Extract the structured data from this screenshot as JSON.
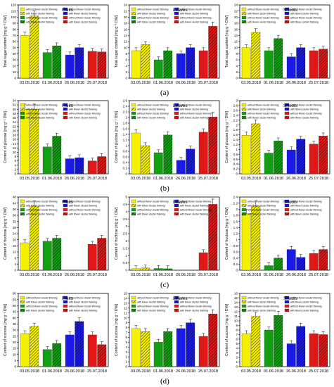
{
  "figure": {
    "panel_labels": [
      "(a)",
      "(b)",
      "(c)",
      "(d)"
    ]
  },
  "legend_labels": [
    "without flower cluster thinning",
    "with flower cluster thinning",
    "without flower cluster thinning",
    "with flower cluster thinning",
    "without flower cluster thinning",
    "with flower cluster thinning",
    "without flower cluster thinning",
    "with flower cluster thinning"
  ],
  "colors": {
    "2018-05-03": "#f5f000",
    "2018-06-01": "#12a012",
    "2018-06-26": "#1a1ae6",
    "2018-07-25": "#e01818"
  },
  "chart_data": [
    {
      "type": "bar",
      "row": 0,
      "col": 0,
      "title": "Fruits",
      "ylabel": "Total sugar content [mg g⁻¹ DW]",
      "ylim": [
        0,
        120
      ],
      "yticks": [
        0,
        10,
        20,
        30,
        40,
        50,
        60,
        70,
        80,
        90,
        100,
        110,
        120
      ],
      "categories": [
        "03.05.2018",
        "01.06.2018",
        "26.06.2018",
        "25.07.2018"
      ],
      "series": [
        {
          "name": "without flower cluster thinning",
          "values": [
            70,
            42,
            38,
            44
          ]
        },
        {
          "name": "with flower cluster thinning",
          "values": [
            102,
            53,
            50,
            43
          ]
        }
      ]
    },
    {
      "type": "bar",
      "row": 0,
      "col": 1,
      "title": "Leaves",
      "ylabel": "Total sugar content [mg g⁻¹ DW]",
      "ylim": [
        0,
        24
      ],
      "yticks": [
        0,
        2,
        4,
        6,
        8,
        10,
        12,
        14,
        16,
        18,
        20,
        22,
        24
      ],
      "categories": [
        "03.05.2018",
        "01.06.2018",
        "26.06.2018",
        "25.07.2018"
      ],
      "series": [
        {
          "name": "without flower cluster thinning",
          "values": [
            9,
            6,
            8,
            9
          ]
        },
        {
          "name": "with flower cluster thinning",
          "values": [
            11,
            9,
            10,
            17
          ]
        }
      ]
    },
    {
      "type": "bar",
      "row": 0,
      "col": 2,
      "title": "Shoots",
      "ylabel": "Total sugar content [mg g⁻¹ DW]",
      "ylim": [
        0,
        24
      ],
      "yticks": [
        0,
        2,
        4,
        6,
        8,
        10,
        12,
        14,
        16,
        18,
        20,
        22,
        24
      ],
      "categories": [
        "03.05.2018",
        "01.06.2018",
        "26.06.2018",
        "25.07.2018"
      ],
      "series": [
        {
          "name": "without flower cluster thinning",
          "values": [
            10,
            9,
            7,
            9
          ]
        },
        {
          "name": "with flower cluster thinning",
          "values": [
            15,
            13,
            10,
            9.5
          ]
        }
      ]
    },
    {
      "type": "bar",
      "row": 1,
      "col": 0,
      "title": "Fruits",
      "ylabel": "Content of glucose [mg g⁻¹ DW]",
      "ylim": [
        0,
        34
      ],
      "yticks": [
        0,
        2,
        4,
        6,
        8,
        10,
        12,
        14,
        16,
        18,
        20,
        22,
        24,
        26,
        28,
        30,
        32,
        34
      ],
      "categories": [
        "03.05.2018",
        "01.06.2018",
        "26.06.2018",
        "25.07.2018"
      ],
      "series": [
        {
          "name": "without flower cluster thinning",
          "values": [
            30,
            12.5,
            7,
            6
          ]
        },
        {
          "name": "with flower cluster thinning",
          "values": [
            30,
            17.5,
            7.5,
            8
          ]
        }
      ]
    },
    {
      "type": "bar",
      "row": 1,
      "col": 1,
      "title": "Leaves",
      "ylabel": "Content of glucose [mg g⁻¹ DW]",
      "ylim": [
        0,
        2.6
      ],
      "yticks": [
        0,
        0.2,
        0.4,
        0.6,
        0.8,
        1.0,
        1.2,
        1.4,
        1.6,
        1.8,
        2.0,
        2.2,
        2.4,
        2.6
      ],
      "categories": [
        "03.05.2018",
        "01.06.2018",
        "26.06.2018",
        "25.07.2018"
      ],
      "series": [
        {
          "name": "without flower cluster thinning",
          "values": [
            1.45,
            0.75,
            0.48,
            1.48
          ]
        },
        {
          "name": "with flower cluster thinning",
          "values": [
            1.0,
            1.38,
            0.88,
            2.02
          ]
        }
      ]
    },
    {
      "type": "bar",
      "row": 1,
      "col": 2,
      "title": "Shoots",
      "ylabel": "Content of glucose [mg g⁻¹ DW]",
      "ylim": [
        0,
        3.0
      ],
      "yticks": [
        0,
        0.2,
        0.4,
        0.6,
        0.8,
        1.0,
        1.2,
        1.4,
        1.6,
        1.8,
        2.0,
        2.2,
        2.4,
        2.6,
        2.8,
        3.0
      ],
      "categories": [
        "03.05.2018",
        "01.06.2018",
        "26.06.2018",
        "25.07.2018"
      ],
      "series": [
        {
          "name": "without flower cluster thinning",
          "values": [
            1.58,
            0.85,
            0.98,
            1.22
          ]
        },
        {
          "name": "with flower cluster thinning",
          "values": [
            2.05,
            1.35,
            1.42,
            1.55
          ]
        }
      ]
    },
    {
      "type": "bar",
      "row": 2,
      "col": 0,
      "title": "Fruits",
      "ylabel": "Content of fructose [mg g⁻¹ DW]",
      "ylim": [
        0,
        48
      ],
      "yticks": [
        0,
        4,
        8,
        12,
        16,
        20,
        24,
        28,
        32,
        36,
        40,
        44,
        48
      ],
      "categories": [
        "03.05.2018",
        "01.06.2018",
        "26.06.2018",
        "25.07.2018"
      ],
      "series": [
        {
          "name": "without flower cluster thinning",
          "values": [
            18,
            19,
            0,
            17
          ]
        },
        {
          "name": "with flower cluster thinning",
          "values": [
            42,
            21,
            0,
            21
          ]
        }
      ]
    },
    {
      "type": "bar",
      "row": 2,
      "col": 1,
      "title": "Leaves",
      "ylabel": "Content of fructose [mg g⁻¹ DW]",
      "ylim": [
        0,
        5.0
      ],
      "yticks": [
        0,
        0.5,
        1.0,
        1.5,
        2.0,
        2.5,
        3.0,
        3.5,
        4.0,
        4.5,
        5.0
      ],
      "categories": [
        "03.05.2018",
        "01.06.2018",
        "26.06.2018",
        "25.07.2018"
      ],
      "series": [
        {
          "name": "without flower cluster thinning",
          "values": [
            0.1,
            0.12,
            0,
            1.2
          ]
        },
        {
          "name": "with flower cluster thinning",
          "values": [
            0.15,
            0.1,
            0,
            4.5
          ]
        }
      ]
    },
    {
      "type": "bar",
      "row": 2,
      "col": 2,
      "title": "Shoots",
      "ylabel": "Content of fructose [mg g⁻¹ DW]",
      "ylim": [
        0,
        2.4
      ],
      "yticks": [
        0,
        0.2,
        0.4,
        0.6,
        0.8,
        1.0,
        1.2,
        1.4,
        1.6,
        1.8,
        2.0,
        2.2,
        2.4
      ],
      "categories": [
        "03.05.2018",
        "01.06.2018",
        "26.06.2018",
        "25.07.2018"
      ],
      "series": [
        {
          "name": "without flower cluster thinning",
          "values": [
            1.85,
            0.15,
            0.68,
            0.55
          ]
        },
        {
          "name": "with flower cluster thinning",
          "values": [
            2.1,
            0.4,
            0.42,
            0.68
          ]
        }
      ]
    },
    {
      "type": "bar",
      "row": 3,
      "col": 0,
      "title": "Fruits",
      "ylabel": "Content of sucrose [mg g⁻¹ DW]",
      "ylim": [
        0,
        60
      ],
      "yticks": [
        0,
        5,
        10,
        15,
        20,
        25,
        30,
        35,
        40,
        45,
        50,
        55,
        60
      ],
      "categories": [
        "03.05.2018",
        "01.06.2018",
        "26.06.2018",
        "25.07.2018"
      ],
      "series": [
        {
          "name": "without flower cluster thinning",
          "values": [
            27,
            14,
            26,
            26
          ]
        },
        {
          "name": "with flower cluster thinning",
          "values": [
            33,
            19,
            37,
            18
          ]
        }
      ]
    },
    {
      "type": "bar",
      "row": 3,
      "col": 1,
      "title": "Leaves",
      "ylabel": "Content of sucrose [mg g⁻¹ DW]",
      "ylim": [
        0,
        15
      ],
      "yticks": [
        0,
        1,
        2,
        3,
        4,
        5,
        6,
        7,
        8,
        9,
        10,
        11,
        12,
        13,
        14,
        15
      ],
      "categories": [
        "03.05.2018",
        "01.06.2018",
        "26.06.2018",
        "25.07.2018"
      ],
      "series": [
        {
          "name": "without flower cluster thinning",
          "values": [
            7.8,
            5.0,
            7.8,
            6.2
          ]
        },
        {
          "name": "with flower cluster thinning",
          "values": [
            7.2,
            7.2,
            9.0,
            10.8
          ]
        }
      ]
    },
    {
      "type": "bar",
      "row": 3,
      "col": 2,
      "title": "Shoots",
      "ylabel": "Content of sucrose [mg g⁻¹ DW]",
      "ylim": [
        0,
        16
      ],
      "yticks": [
        0,
        1,
        2,
        3,
        4,
        5,
        6,
        7,
        8,
        9,
        10,
        11,
        12,
        13,
        14,
        15,
        16
      ],
      "categories": [
        "03.05.2018",
        "01.06.2018",
        "26.06.2018",
        "25.07.2018"
      ],
      "series": [
        {
          "name": "without flower cluster thinning",
          "values": [
            7.2,
            8.0,
            5.0,
            7.2
          ]
        },
        {
          "name": "with flower cluster thinning",
          "values": [
            11.0,
            11.2,
            8.8,
            7.0
          ]
        }
      ]
    }
  ]
}
